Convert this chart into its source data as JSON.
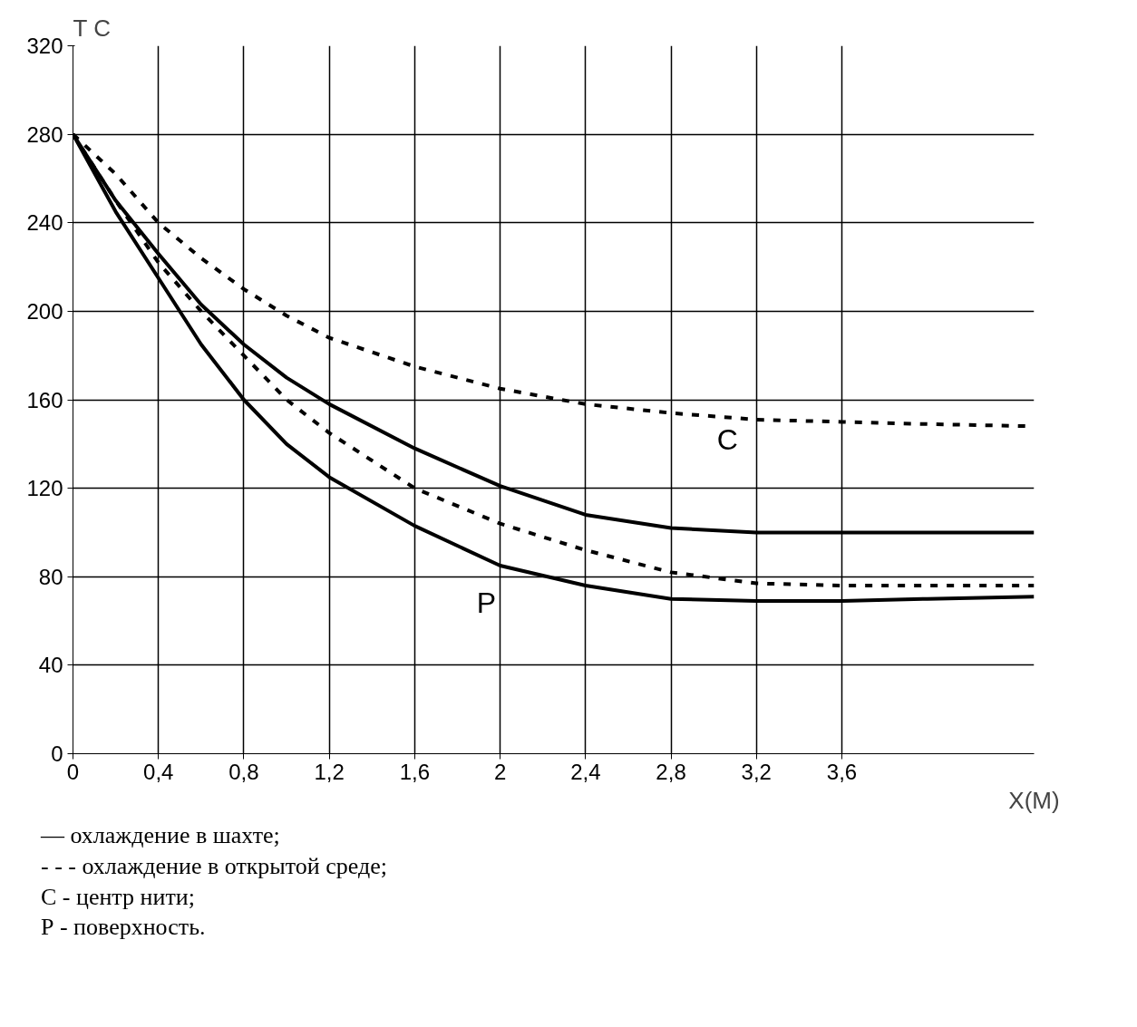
{
  "chart_data": {
    "type": "line",
    "ylabel": "T C",
    "xlabel": "X(M)",
    "xlim": [
      0,
      4.5
    ],
    "ylim": [
      0,
      320
    ],
    "xticks": [
      0,
      {
        "value": 0.4,
        "label": "0,4"
      },
      {
        "value": 0.8,
        "label": "0,8"
      },
      {
        "value": 1.2,
        "label": "1,2"
      },
      {
        "value": 1.6,
        "label": "1,6"
      },
      2,
      {
        "value": 2.4,
        "label": "2,4"
      },
      {
        "value": 2.8,
        "label": "2,8"
      },
      {
        "value": 3.2,
        "label": "3,2"
      },
      {
        "value": 3.6,
        "label": "3,6"
      }
    ],
    "yticks": [
      0,
      40,
      80,
      120,
      160,
      200,
      240,
      280,
      320
    ],
    "grid": true,
    "marker": "none",
    "x": [
      0,
      0.2,
      0.4,
      0.6,
      0.8,
      1.0,
      1.2,
      1.6,
      2.0,
      2.4,
      2.8,
      3.2,
      3.6,
      4.0,
      4.5
    ],
    "series": [
      {
        "color": "#000000",
        "line_style": "solid",
        "values": [
          280,
          250,
          226,
          203,
          185,
          170,
          158,
          138,
          121,
          108,
          102,
          100,
          100,
          100,
          100
        ]
      },
      {
        "color": "#000000",
        "line_style": "solid",
        "values": [
          280,
          245,
          215,
          185,
          160,
          140,
          125,
          103,
          85,
          76,
          70,
          69,
          69,
          70,
          71
        ]
      },
      {
        "color": "#000000",
        "line_style": "dashed",
        "values": [
          280,
          262,
          240,
          224,
          210,
          198,
          188,
          175,
          165,
          158,
          154,
          151,
          150,
          149,
          148
        ]
      },
      {
        "color": "#000000",
        "line_style": "dashed",
        "values": [
          280,
          250,
          222,
          200,
          180,
          160,
          145,
          120,
          104,
          92,
          82,
          77,
          76,
          76,
          76
        ]
      }
    ],
    "annotations": [
      "C",
      "P",
      "— охлаждение в шахте;",
      "- - - охлаждение в открытой среде;",
      "С - центр нити;",
      "Р - поверхность."
    ]
  }
}
